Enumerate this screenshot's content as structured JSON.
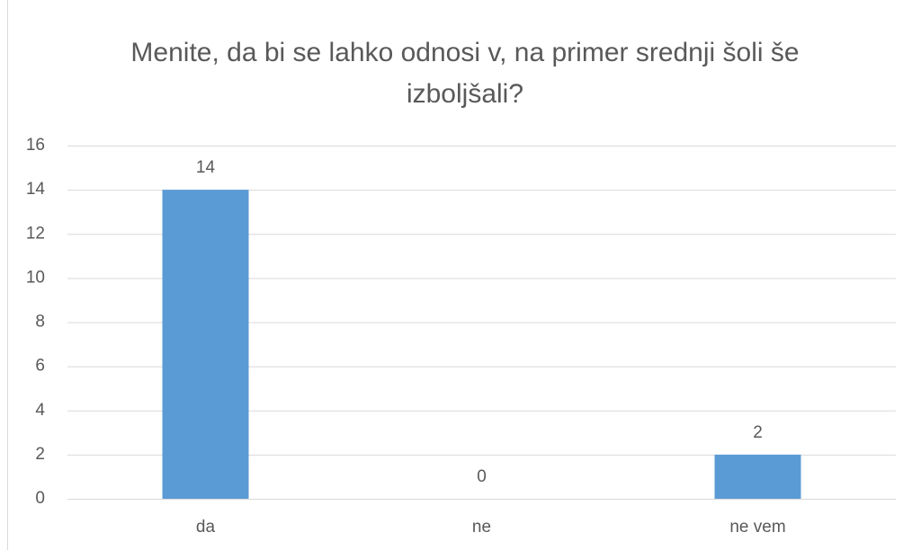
{
  "chart_data": {
    "type": "bar",
    "title": "Menite, da bi se lahko odnosi v, na primer srednji šoli še izboljšali?",
    "categories": [
      "da",
      "ne",
      "ne vem"
    ],
    "values": [
      14,
      0,
      2
    ],
    "color": "#5b9bd5",
    "ylim": [
      0,
      16
    ],
    "yticks": [
      0,
      2,
      4,
      6,
      8,
      10,
      12,
      14,
      16
    ],
    "grid": true
  }
}
